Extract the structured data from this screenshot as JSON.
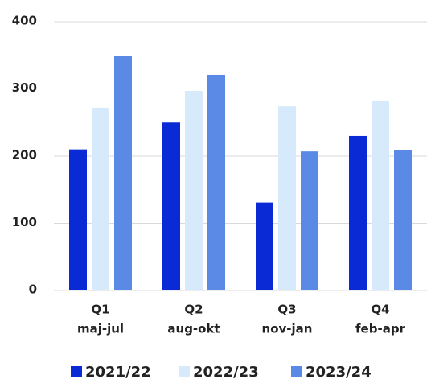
{
  "chart_data": {
    "type": "bar",
    "categories": [
      [
        "Q1",
        "maj-jul"
      ],
      [
        "Q2",
        "aug-okt"
      ],
      [
        "Q3",
        "nov-jan"
      ],
      [
        "Q4",
        "feb-apr"
      ]
    ],
    "series": [
      {
        "name": "2021/22",
        "color": "#0a2ad6",
        "values": [
          210,
          250,
          131,
          230
        ]
      },
      {
        "name": "2022/23",
        "color": "#d6eafc",
        "values": [
          272,
          297,
          274,
          282
        ]
      },
      {
        "name": "2023/24",
        "color": "#5b8ae6",
        "values": [
          349,
          321,
          207,
          209
        ]
      }
    ],
    "ylim": [
      0,
      400
    ],
    "yticks": [
      0,
      100,
      200,
      300,
      400
    ],
    "grid": true
  }
}
